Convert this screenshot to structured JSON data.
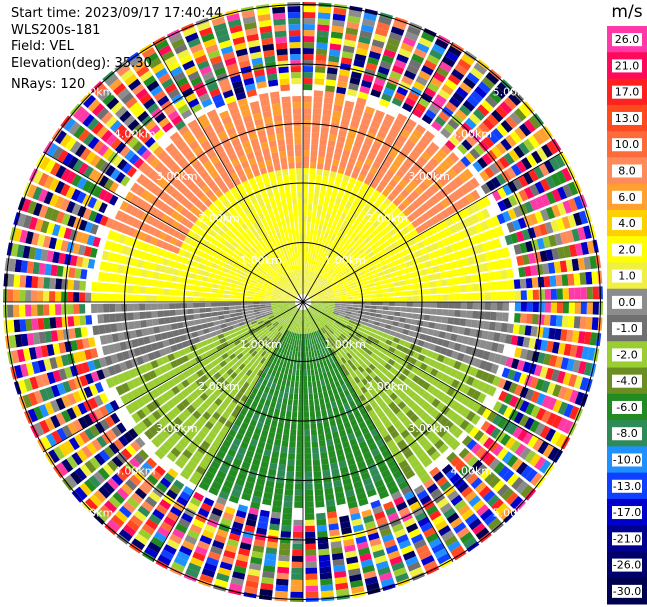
{
  "info": {
    "start_time": "Start time: 2023/09/17 17:40:44",
    "site": "WLS200s-181",
    "field": "Field: VEL",
    "elevation": "Elevation(deg): 35.30",
    "nrays": "NRays: 120"
  },
  "ring_labels": [
    "1.00km",
    "2.00km",
    "3.00km",
    "4.00km",
    "5.00km"
  ],
  "colorbar": {
    "unit": "m/s",
    "ticks": [
      "26.0",
      "21.0",
      "17.0",
      "13.0",
      "10.0",
      "8.0",
      "6.0",
      "4.0",
      "2.0",
      "1.0",
      "0.0",
      "-1.0",
      "-2.0",
      "-4.0",
      "-6.0",
      "-8.0",
      "-10.0",
      "-13.0",
      "-17.0",
      "-21.0",
      "-26.0",
      "-30.0"
    ],
    "colors": [
      "#ff3aa8",
      "#ff0a5a",
      "#ff2020",
      "#ff4a20",
      "#ff6a3a",
      "#ff8a5a",
      "#ffa030",
      "#ffd000",
      "#ffff00",
      "#f0f040",
      "#8c8c8c",
      "#707070",
      "#9acd32",
      "#6b8e23",
      "#228b22",
      "#2e8b57",
      "#1e90ff",
      "#1040ff",
      "#0000cd",
      "#000090",
      "#00006a",
      "#000050"
    ]
  }
}
